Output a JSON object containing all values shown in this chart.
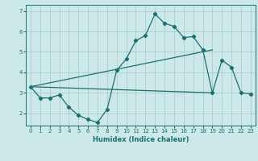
{
  "xlabel": "Humidex (Indice chaleur)",
  "xlim": [
    -0.5,
    23.5
  ],
  "ylim": [
    1.4,
    7.3
  ],
  "yticks": [
    2,
    3,
    4,
    5,
    6,
    7
  ],
  "xticks": [
    0,
    1,
    2,
    3,
    4,
    5,
    6,
    7,
    8,
    9,
    10,
    11,
    12,
    13,
    14,
    15,
    16,
    17,
    18,
    19,
    20,
    21,
    22,
    23
  ],
  "bg_color": "#cde8e8",
  "grid_color": "#aacece",
  "line_color": "#1a7070",
  "line1_x": [
    0,
    1,
    2,
    3,
    4,
    5,
    6,
    7,
    8,
    9,
    10,
    11,
    12,
    13,
    14,
    15,
    16,
    17,
    18,
    19,
    20,
    21,
    22,
    23
  ],
  "line1_y": [
    3.3,
    2.75,
    2.75,
    2.9,
    2.3,
    1.9,
    1.7,
    1.55,
    2.2,
    4.1,
    4.65,
    5.55,
    5.8,
    6.85,
    6.4,
    6.25,
    5.7,
    5.75,
    5.1,
    3.0,
    4.6,
    4.25,
    3.0,
    2.95
  ],
  "line2_x": [
    0,
    19
  ],
  "line2_y": [
    3.3,
    3.0
  ],
  "line3_x": [
    0,
    19
  ],
  "line3_y": [
    3.3,
    5.1
  ]
}
